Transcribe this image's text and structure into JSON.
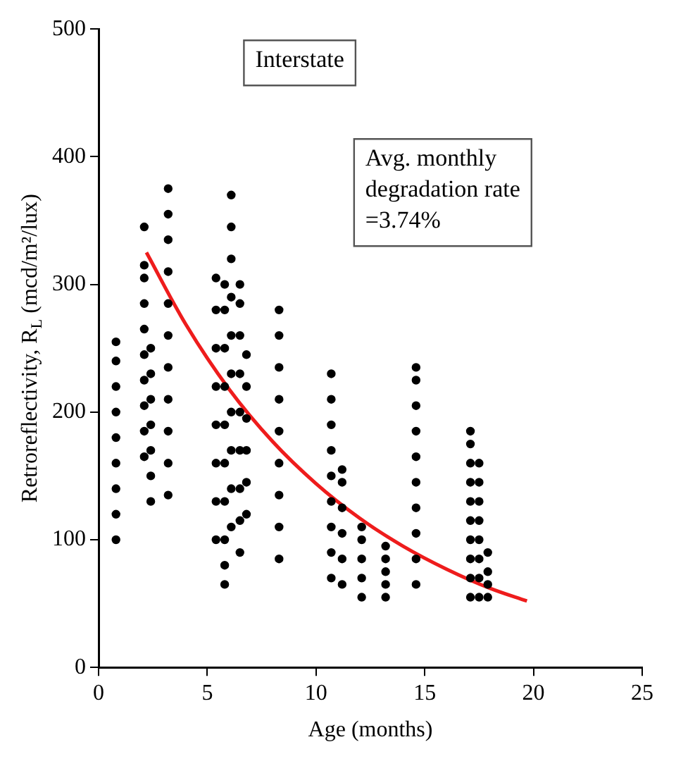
{
  "chart_data": {
    "type": "scatter",
    "xlabel": "Age (months)",
    "ylabel": "Retroreflectivity, R$_{L}$ (mcd/m²/lux)",
    "xlim": [
      0,
      25
    ],
    "xticks": [
      0,
      5,
      10,
      15,
      20,
      25
    ],
    "ylim": [
      0,
      500
    ],
    "yticks": [
      0,
      100,
      200,
      300,
      400,
      500
    ],
    "grid": false,
    "legend": false,
    "marker": "circle",
    "annotations": [
      "Interstate",
      "Avg. monthly degradation rate =3.74%"
    ],
    "series": [
      {
        "color": "#000000",
        "x": [
          0.8,
          0.8,
          0.8,
          0.8,
          0.8,
          0.8,
          0.8,
          0.8,
          0.8,
          2.1,
          2.1,
          2.1,
          2.1,
          2.1,
          2.1,
          2.1,
          2.1,
          2.1,
          2.1,
          2.4,
          2.4,
          2.4,
          2.4,
          2.4,
          2.4,
          2.4,
          3.2,
          3.2,
          3.2,
          3.2,
          3.2,
          3.2,
          3.2,
          3.2,
          3.2,
          3.2,
          3.2,
          5.4,
          5.4,
          5.4,
          5.4,
          5.4,
          5.4,
          5.4,
          5.4,
          5.8,
          5.8,
          5.8,
          5.8,
          5.8,
          5.8,
          5.8,
          5.8,
          5.8,
          5.8,
          6.1,
          6.1,
          6.1,
          6.1,
          6.1,
          6.1,
          6.1,
          6.1,
          6.1,
          6.1,
          6.5,
          6.5,
          6.5,
          6.5,
          6.5,
          6.5,
          6.5,
          6.5,
          6.5,
          6.8,
          6.8,
          6.8,
          6.8,
          6.8,
          6.8,
          8.3,
          8.3,
          8.3,
          8.3,
          8.3,
          8.3,
          8.3,
          8.3,
          8.3,
          10.7,
          10.7,
          10.7,
          10.7,
          10.7,
          10.7,
          10.7,
          10.7,
          10.7,
          11.2,
          11.2,
          11.2,
          11.2,
          11.2,
          11.2,
          12.1,
          12.1,
          12.1,
          12.1,
          12.1,
          13.2,
          13.2,
          13.2,
          13.2,
          13.2,
          14.6,
          14.6,
          14.6,
          14.6,
          14.6,
          14.6,
          14.6,
          14.6,
          14.6,
          14.6,
          17.1,
          17.1,
          17.1,
          17.1,
          17.1,
          17.1,
          17.1,
          17.1,
          17.1,
          17.1,
          17.5,
          17.5,
          17.5,
          17.5,
          17.5,
          17.5,
          17.5,
          17.5,
          17.9,
          17.9,
          17.9,
          17.9
        ],
        "values": [
          100,
          120,
          140,
          160,
          180,
          200,
          220,
          240,
          255,
          165,
          185,
          205,
          225,
          245,
          265,
          285,
          305,
          315,
          345,
          130,
          150,
          170,
          190,
          210,
          230,
          250,
          135,
          160,
          185,
          210,
          235,
          260,
          285,
          310,
          335,
          355,
          375,
          100,
          130,
          160,
          190,
          220,
          250,
          280,
          305,
          65,
          80,
          100,
          130,
          160,
          190,
          220,
          250,
          280,
          300,
          110,
          140,
          170,
          200,
          230,
          260,
          290,
          320,
          345,
          370,
          90,
          115,
          140,
          170,
          200,
          230,
          260,
          285,
          300,
          120,
          145,
          170,
          195,
          220,
          245,
          85,
          110,
          135,
          160,
          185,
          210,
          235,
          260,
          280,
          70,
          90,
          110,
          130,
          150,
          170,
          190,
          210,
          230,
          65,
          85,
          105,
          125,
          145,
          155,
          55,
          70,
          85,
          100,
          110,
          55,
          65,
          75,
          85,
          95,
          65,
          85,
          105,
          125,
          145,
          165,
          185,
          205,
          225,
          235,
          55,
          70,
          85,
          100,
          115,
          130,
          145,
          160,
          175,
          185,
          55,
          70,
          85,
          100,
          115,
          130,
          145,
          160,
          55,
          65,
          75,
          90
        ]
      },
      {
        "type": "line",
        "color": "#ee1c1c",
        "marker": "none",
        "x": [
          2.2,
          4,
          6,
          8,
          10,
          12,
          14,
          16,
          18,
          19.7
        ],
        "values": [
          325,
          269,
          218,
          177,
          144,
          117,
          95,
          77,
          62,
          52
        ]
      }
    ]
  }
}
